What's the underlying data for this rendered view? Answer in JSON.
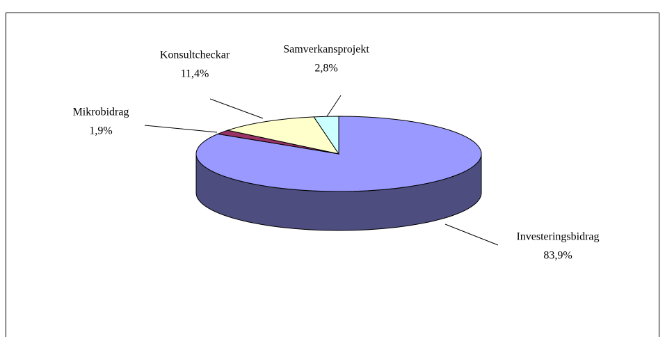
{
  "chart_data": {
    "type": "pie",
    "categories": [
      "Investeringsbidrag",
      "Mikrobidrag",
      "Konsultcheckar",
      "Samverkansprojekt"
    ],
    "values": [
      83.9,
      1.9,
      11.4,
      2.8
    ],
    "value_labels": [
      "83,9%",
      "1,9%",
      "11,4%",
      "2,8%"
    ],
    "colors": [
      "#9999ff",
      "#993366",
      "#ffffcc",
      "#ccffff"
    ]
  }
}
